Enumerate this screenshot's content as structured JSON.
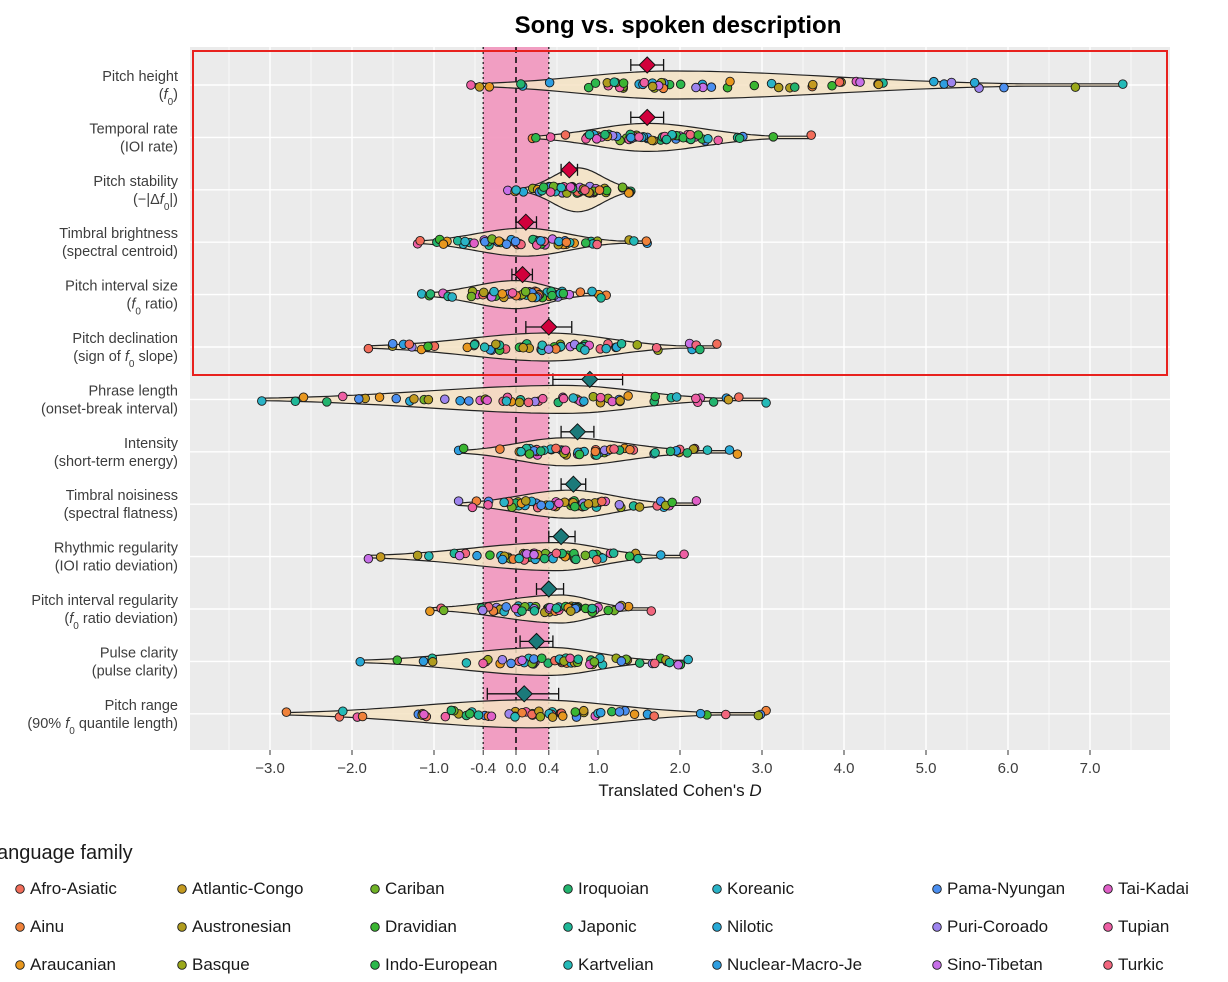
{
  "chart_data": {
    "type": "violin",
    "title": "Song vs. spoken description",
    "xlabel": "Translated Cohen's D",
    "xlim": [
      -3.9,
      8.0
    ],
    "xticks": [
      -3.0,
      -2.0,
      -1.0,
      -0.4,
      0.0,
      0.4,
      1.0,
      2.0,
      3.0,
      4.0,
      5.0,
      6.0,
      7.0
    ],
    "xtick_labels": [
      "−3.0",
      "−2.0",
      "−1.0",
      "-0.4",
      "0.0",
      "0.4",
      "1.0",
      "2.0",
      "3.0",
      "4.0",
      "5.0",
      "6.0",
      "7.0"
    ],
    "equivalence_band": [
      -0.4,
      0.4
    ],
    "highlight_box_rows": 6,
    "grid": true,
    "features": [
      {
        "label1": "Pitch height",
        "label2": "(f0)",
        "mean": 1.6,
        "ci": [
          1.4,
          1.8
        ],
        "group": "highlight",
        "range": [
          -0.55,
          7.4
        ],
        "center": 1.9
      },
      {
        "label1": "Temporal rate",
        "label2": "(IOI rate)",
        "mean": 1.6,
        "ci": [
          1.4,
          1.8
        ],
        "group": "highlight",
        "range": [
          0.2,
          3.6
        ],
        "center": 1.6
      },
      {
        "label1": "Pitch stability",
        "label2": "(−|Δf0|)",
        "mean": 0.65,
        "ci": [
          0.55,
          0.75
        ],
        "group": "highlight",
        "range": [
          -0.1,
          1.4
        ],
        "center": 0.75
      },
      {
        "label1": "Timbral brightness",
        "label2": "(spectral centroid)",
        "mean": 0.12,
        "ci": [
          0.0,
          0.25
        ],
        "group": "highlight",
        "range": [
          -1.2,
          1.6
        ],
        "center": 0.1
      },
      {
        "label1": "Pitch interval size",
        "label2": "(f0 ratio)",
        "mean": 0.08,
        "ci": [
          -0.05,
          0.2
        ],
        "group": "highlight",
        "range": [
          -1.15,
          1.1
        ],
        "center": 0.0
      },
      {
        "label1": "Pitch declination",
        "label2": "(sign of f0 slope)",
        "mean": 0.4,
        "ci": [
          0.12,
          0.68
        ],
        "group": "highlight",
        "range": [
          -1.8,
          2.45
        ],
        "center": 0.4
      },
      {
        "label1": "Phrase length",
        "label2": "(onset-break interval)",
        "mean": 0.9,
        "ci": [
          0.45,
          1.3
        ],
        "group": "other",
        "range": [
          -3.1,
          3.05
        ],
        "center": 0.6
      },
      {
        "label1": "Intensity",
        "label2": "(short-term energy)",
        "mean": 0.75,
        "ci": [
          0.55,
          0.95
        ],
        "group": "other",
        "range": [
          -0.7,
          2.7
        ],
        "center": 0.6
      },
      {
        "label1": "Timbral noisiness",
        "label2": "(spectral flatness)",
        "mean": 0.7,
        "ci": [
          0.55,
          0.85
        ],
        "group": "other",
        "range": [
          -0.7,
          2.2
        ],
        "center": 0.65
      },
      {
        "label1": "Rhythmic regularity",
        "label2": "(IOI ratio deviation)",
        "mean": 0.55,
        "ci": [
          0.4,
          0.72
        ],
        "group": "other",
        "range": [
          -1.8,
          2.05
        ],
        "center": 0.5
      },
      {
        "label1": "Pitch interval regularity",
        "label2": "(f0 ratio deviation)",
        "mean": 0.4,
        "ci": [
          0.25,
          0.58
        ],
        "group": "other",
        "range": [
          -1.05,
          1.65
        ],
        "center": 0.55
      },
      {
        "label1": "Pulse clarity",
        "label2": "(pulse clarity)",
        "mean": 0.25,
        "ci": [
          0.05,
          0.45
        ],
        "group": "other",
        "range": [
          -1.9,
          2.1
        ],
        "center": 0.4
      },
      {
        "label1": "Pitch range",
        "label2": "(90% f0 quantile length)",
        "mean": 0.1,
        "ci": [
          -0.35,
          0.52
        ],
        "group": "other",
        "range": [
          -2.8,
          3.05
        ],
        "center": 0.2
      }
    ],
    "colors": {
      "highlight": "#d1003c",
      "other": "#1b7a7a",
      "band": "#f19ac0",
      "panel": "#ebebeb",
      "box": "#e8211e",
      "violin": "#f5e3c3"
    }
  },
  "legend": {
    "title": "anguage family",
    "items": [
      {
        "name": "Afro-Asiatic",
        "color": "#f26d5a"
      },
      {
        "name": "Ainu",
        "color": "#f0823a"
      },
      {
        "name": "Araucanian",
        "color": "#e8971e"
      },
      {
        "name": "Atlantic-Congo",
        "color": "#c49a20"
      },
      {
        "name": "Austronesian",
        "color": "#b09c1e"
      },
      {
        "name": "Basque",
        "color": "#9aa81a"
      },
      {
        "name": "Cariban",
        "color": "#6fb226"
      },
      {
        "name": "Dravidian",
        "color": "#3ab531"
      },
      {
        "name": "Indo-European",
        "color": "#2db84c"
      },
      {
        "name": "Iroquoian",
        "color": "#22b46e"
      },
      {
        "name": "Japonic",
        "color": "#1fb898"
      },
      {
        "name": "Kartvelian",
        "color": "#24bab8"
      },
      {
        "name": "Koreanic",
        "color": "#2ab3c7"
      },
      {
        "name": "Nilotic",
        "color": "#27a9d6"
      },
      {
        "name": "Nuclear-Macro-Je",
        "color": "#2e9ee0"
      },
      {
        "name": "Pama-Nyungan",
        "color": "#4b8ff0"
      },
      {
        "name": "Puri-Coroado",
        "color": "#9d84ee"
      },
      {
        "name": "Sino-Tibetan",
        "color": "#c770e8"
      },
      {
        "name": "Tai-Kadai",
        "color": "#e05fc8"
      },
      {
        "name": "Tupian",
        "color": "#ee5fa4"
      },
      {
        "name": "Turkic",
        "color": "#f2667e"
      }
    ]
  }
}
